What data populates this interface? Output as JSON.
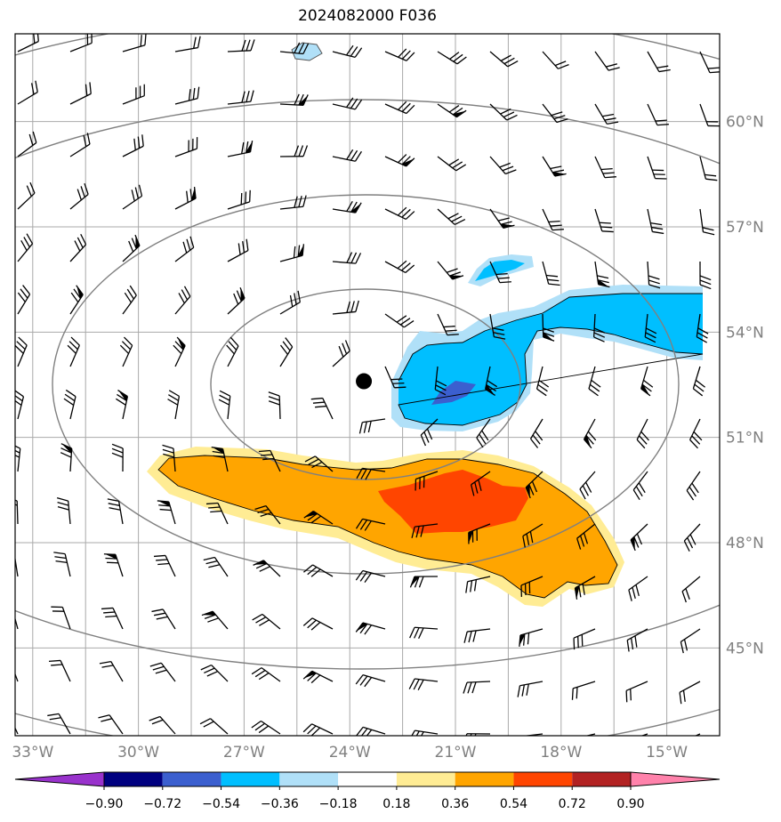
{
  "title": "2024082000 F036",
  "map": {
    "lon_range": [
      -33.5,
      -13.5
    ],
    "lat_range": [
      42.5,
      62.5
    ],
    "lon_ticks": [
      {
        "value": -33,
        "label": "33°W"
      },
      {
        "value": -30,
        "label": "30°W"
      },
      {
        "value": -27,
        "label": "27°W"
      },
      {
        "value": -24,
        "label": "24°W"
      },
      {
        "value": -21,
        "label": "21°W"
      },
      {
        "value": -18,
        "label": "18°W"
      },
      {
        "value": -15,
        "label": "15°W"
      }
    ],
    "lat_ticks": [
      {
        "value": 45,
        "label": "45°N"
      },
      {
        "value": 48,
        "label": "48°N"
      },
      {
        "value": 51,
        "label": "51°N"
      },
      {
        "value": 54,
        "label": "54°N"
      },
      {
        "value": 57,
        "label": "57°N"
      },
      {
        "value": 60,
        "label": "60°N"
      }
    ],
    "center_marker": {
      "lon": -23.6,
      "lat": 52.6
    },
    "grid": true
  },
  "colorbar": {
    "ticks": [
      "−0.90",
      "−0.72",
      "−0.54",
      "−0.36",
      "−0.18",
      "0.18",
      "0.36",
      "0.54",
      "0.72",
      "0.90"
    ],
    "colors": [
      "#9932cc",
      "#000080",
      "#3b5fcf",
      "#00bfff",
      "#b0e0f8",
      "#ffffff",
      "#ffec94",
      "#ffa500",
      "#ff4500",
      "#b22222",
      "#ff82ab"
    ]
  },
  "colors": {
    "grid": "#a9a9a9",
    "contour": "#808080",
    "barb": "#000000"
  }
}
